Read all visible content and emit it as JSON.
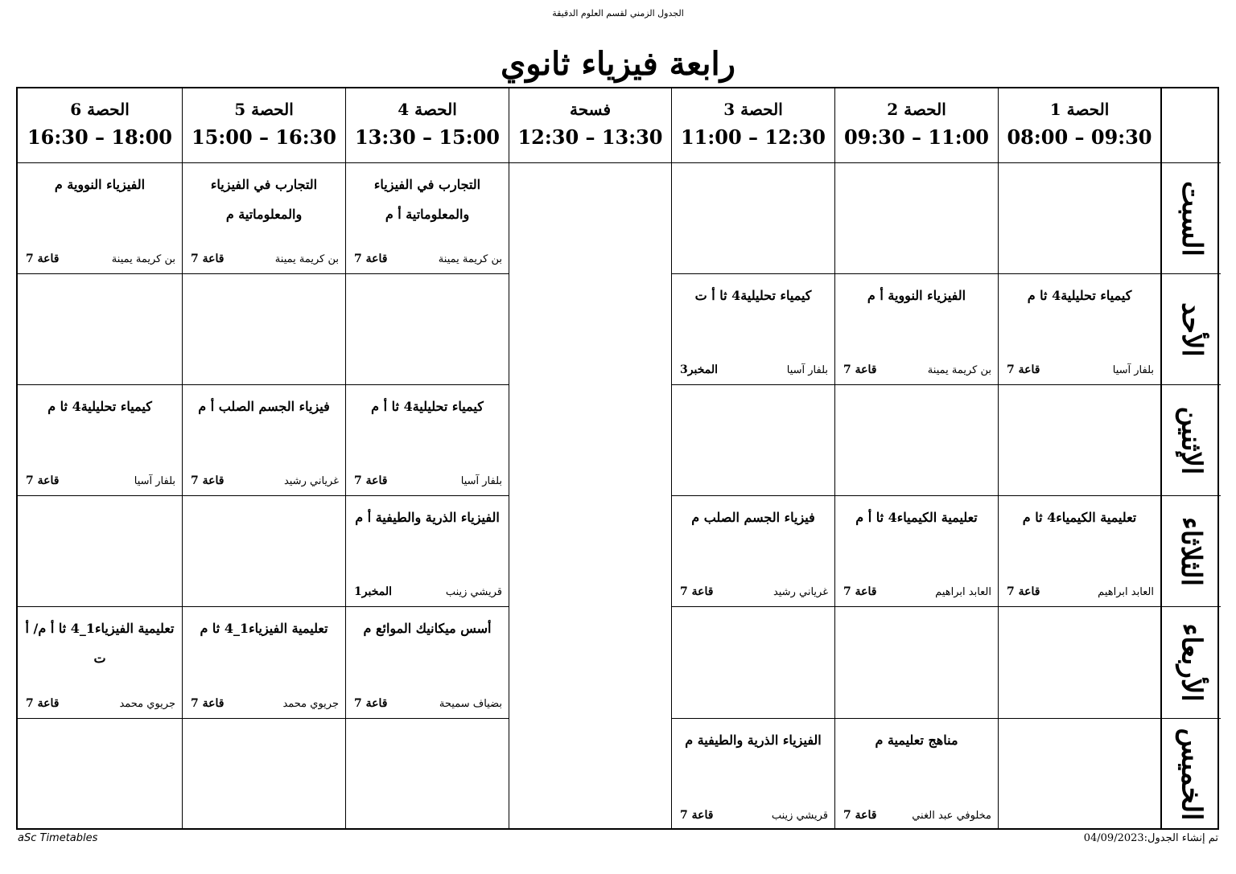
{
  "header_note": "الجدول الزمني لقسم العلوم الدقيقة",
  "title": "رابعة فيزياء ثانوي",
  "periods": [
    {
      "name": "الحصة 1",
      "time": "08:00 – 09:30"
    },
    {
      "name": "الحصة 2",
      "time": "09:30 – 11:00"
    },
    {
      "name": "الحصة 3",
      "time": "11:00 – 12:30"
    },
    {
      "name": "فسحة",
      "time": "12:30 – 13:30"
    },
    {
      "name": "الحصة 4",
      "time": "13:30 – 15:00"
    },
    {
      "name": "الحصة 5",
      "time": "15:00 – 16:30"
    },
    {
      "name": "الحصة 6",
      "time": "16:30 – 18:00"
    }
  ],
  "days": [
    {
      "name": "السبت",
      "cells": [
        null,
        null,
        null,
        {
          "subject": "التجارب في الفيزياء والمعلوماتية أ م",
          "teacher": "بن كريمة يمينة",
          "room": "قاعة 7"
        },
        {
          "subject": "التجارب في الفيزياء والمعلوماتية م",
          "teacher": "بن كريمة يمينة",
          "room": "قاعة 7"
        },
        {
          "subject": "الفيزياء النووية م",
          "teacher": "بن كريمة يمينة",
          "room": "قاعة 7"
        }
      ]
    },
    {
      "name": "الأحد",
      "cells": [
        {
          "subject": "كيمياء تحليلية4 ثا م",
          "teacher": "بلفار آسيا",
          "room": "قاعة 7"
        },
        {
          "subject": "الفيزياء النووية أ م",
          "teacher": "بن كريمة يمينة",
          "room": "قاعة 7"
        },
        {
          "subject": "كيمياء تحليلية4 ثا أ ت",
          "teacher": "بلفار آسيا",
          "room": "المخبر3"
        },
        null,
        null,
        null
      ]
    },
    {
      "name": "الإثنين",
      "cells": [
        null,
        null,
        null,
        {
          "subject": "كيمياء تحليلية4 ثا أ م",
          "teacher": "بلفار آسيا",
          "room": "قاعة 7"
        },
        {
          "subject": "فيزياء الجسم الصلب أ م",
          "teacher": "غرياني رشيد",
          "room": "قاعة 7"
        },
        {
          "subject": "كيمياء تحليلية4 ثا م",
          "teacher": "بلفار آسيا",
          "room": "قاعة 7"
        }
      ]
    },
    {
      "name": "الثلاثاء",
      "cells": [
        {
          "subject": "تعليمية الكيمياء4 ثا م",
          "teacher": "العابد ابراهيم",
          "room": "قاعة 7"
        },
        {
          "subject": "تعليمية الكيمياء4 ثا أ م",
          "teacher": "العابد ابراهيم",
          "room": "قاعة 7"
        },
        {
          "subject": "فيزياء الجسم الصلب م",
          "teacher": "غرياني رشيد",
          "room": "قاعة 7"
        },
        {
          "subject": "الفيزياء الذرية والطيفية أ م",
          "teacher": "قريشي زينب",
          "room": "المخبر1"
        },
        null,
        null
      ]
    },
    {
      "name": "الأربعاء",
      "cells": [
        null,
        null,
        null,
        {
          "subject": "أسس ميكانيك الموائع م",
          "teacher": "بضياف سميحة",
          "room": "قاعة 7"
        },
        {
          "subject": "تعليمية الفيزياء1_4 ثا م",
          "teacher": "جريوي محمد",
          "room": "قاعة 7"
        },
        {
          "subject": "تعليمية الفيزياء1_4 ثا أ م/ أ ت",
          "teacher": "جريوي محمد",
          "room": "قاعة 7"
        }
      ]
    },
    {
      "name": "الخميس",
      "cells": [
        null,
        {
          "subject": "مناهج تعليمية م",
          "teacher": "مخلوفي عبد الغني",
          "room": "قاعة 7"
        },
        {
          "subject": "الفيزياء الذرية والطيفية م",
          "teacher": "قريشي زينب",
          "room": "قاعة 7"
        },
        null,
        null,
        null
      ]
    }
  ],
  "footer": {
    "generator": "aSc Timetables",
    "created": "تم إنشاء الجدول:04/09/2023"
  }
}
